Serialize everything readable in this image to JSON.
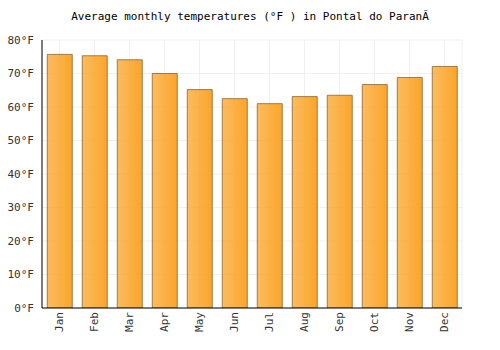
{
  "chart_data": {
    "type": "bar",
    "title": "Average monthly temperatures (°F ) in Pontal do ParanÃ",
    "categories": [
      "Jan",
      "Feb",
      "Mar",
      "Apr",
      "May",
      "Jun",
      "Jul",
      "Aug",
      "Sep",
      "Oct",
      "Nov",
      "Dec"
    ],
    "values": [
      75.7,
      75.3,
      74.1,
      70.0,
      65.2,
      62.5,
      61.0,
      63.1,
      63.5,
      66.7,
      68.8,
      72.1
    ],
    "color": "#fba52a",
    "ylim": [
      0,
      80
    ],
    "yticks": [
      {
        "value": 0,
        "label": "0°F"
      },
      {
        "value": 10,
        "label": "10°F"
      },
      {
        "value": 20,
        "label": "20°F"
      },
      {
        "value": 30,
        "label": "30°F"
      },
      {
        "value": 40,
        "label": "40°F"
      },
      {
        "value": 50,
        "label": "50°F"
      },
      {
        "value": 60,
        "label": "60°F"
      },
      {
        "value": 70,
        "label": "70°F"
      },
      {
        "value": 80,
        "label": "80°F"
      }
    ],
    "grid": true
  }
}
